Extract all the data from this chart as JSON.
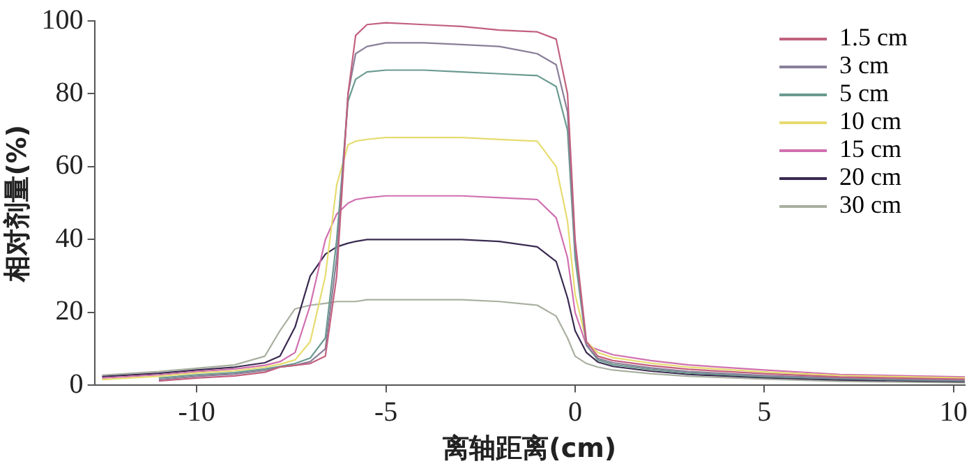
{
  "chart_data": {
    "type": "line",
    "xlabel": "离轴距离(cm)",
    "ylabel": "相对剂量(%)",
    "x": [
      -12.5,
      -11,
      -10,
      -9,
      -8.2,
      -7.8,
      -7.4,
      -7,
      -6.6,
      -6.3,
      -6,
      -5.8,
      -5.5,
      -5,
      -4,
      -3,
      -2,
      -1,
      -0.5,
      -0.2,
      0,
      0.3,
      0.6,
      1,
      2,
      3,
      5,
      7,
      10.3
    ],
    "series": [
      {
        "name": "1.5 cm",
        "color": "#c2607e",
        "values": [
          null,
          1.2,
          2,
          2.6,
          3.6,
          5,
          5.5,
          6,
          8,
          30,
          80,
          96,
          99,
          99.5,
          99,
          98.5,
          97.5,
          97,
          95,
          80,
          40,
          12,
          8,
          6.8,
          5.4,
          4.4,
          3.2,
          2.3,
          1.7
        ]
      },
      {
        "name": "3 cm",
        "color": "#8a7f99",
        "values": [
          null,
          1.6,
          2.5,
          3.1,
          4.1,
          5,
          5.5,
          6.5,
          10,
          35,
          80,
          91,
          93,
          94,
          94,
          93.5,
          93,
          91,
          88,
          75,
          38,
          11,
          7.4,
          6.2,
          4.8,
          3.8,
          2.7,
          2,
          1.4
        ]
      },
      {
        "name": "5 cm",
        "color": "#6a9a90",
        "values": [
          null,
          2,
          2.9,
          3.5,
          4.5,
          5.2,
          6,
          7.5,
          13,
          40,
          78,
          84,
          86,
          86.5,
          86.5,
          86,
          85.5,
          85,
          82,
          70,
          35,
          11,
          7,
          5.7,
          4.4,
          3.4,
          2.4,
          1.8,
          1.2
        ]
      },
      {
        "name": "10 cm",
        "color": "#e6dc70",
        "values": [
          1.6,
          2.5,
          3.4,
          4,
          5,
          5.8,
          7,
          12,
          30,
          55,
          66,
          67,
          67.5,
          68,
          68,
          68,
          67.5,
          67,
          60,
          45,
          25,
          12,
          9,
          7.6,
          6.1,
          5,
          3.7,
          2.7,
          2
        ]
      },
      {
        "name": "15 cm",
        "color": "#d070b0",
        "values": [
          2,
          2.9,
          3.8,
          4.5,
          5.5,
          6.5,
          9,
          22,
          40,
          47,
          50,
          51,
          51.5,
          52,
          52,
          52,
          51.5,
          51,
          46,
          35,
          20,
          11,
          9.8,
          8.4,
          6.8,
          5.6,
          4.2,
          3,
          2.3
        ]
      },
      {
        "name": "20 cm",
        "color": "#3a2a50",
        "values": [
          2.4,
          3.3,
          4.2,
          5,
          6.2,
          8,
          16,
          30,
          36,
          38,
          39,
          39.5,
          40,
          40,
          40,
          40,
          39.5,
          38,
          34,
          24,
          15,
          9,
          6.4,
          5.2,
          3.9,
          3,
          2.1,
          1.5,
          1
        ]
      },
      {
        "name": "30 cm",
        "color": "#a8b0a0",
        "values": [
          2.8,
          3.8,
          4.7,
          5.6,
          8,
          15,
          21,
          22,
          22.5,
          23,
          23,
          23,
          23.5,
          23.5,
          23.5,
          23.5,
          23,
          22,
          19,
          13,
          8,
          6,
          5,
          4.2,
          3.2,
          2.5,
          1.7,
          1.1,
          0.7
        ]
      }
    ],
    "xlim": [
      -12.7,
      10.3
    ],
    "xticks": [
      -10,
      -5,
      0,
      5,
      10
    ],
    "ylim": [
      0,
      100
    ],
    "yticks": [
      0,
      20,
      40,
      60,
      80,
      100
    ],
    "grid": false,
    "legend": "top right",
    "marker": "none",
    "line_style": "solid"
  }
}
